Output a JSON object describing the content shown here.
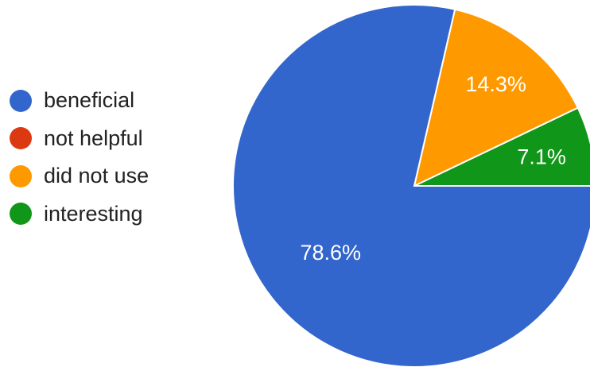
{
  "chart_data": {
    "type": "pie",
    "title": "",
    "slices": [
      {
        "label": "beneficial",
        "value": 78.6,
        "value_label": "78.6%",
        "color": "#3366cc"
      },
      {
        "label": "not helpful",
        "value": 0,
        "value_label": "",
        "color": "#dc3912"
      },
      {
        "label": "did not use",
        "value": 14.3,
        "value_label": "14.3%",
        "color": "#ff9900"
      },
      {
        "label": "interesting",
        "value": 7.1,
        "value_label": "7.1%",
        "color": "#109618"
      }
    ],
    "legend_position": "left"
  }
}
